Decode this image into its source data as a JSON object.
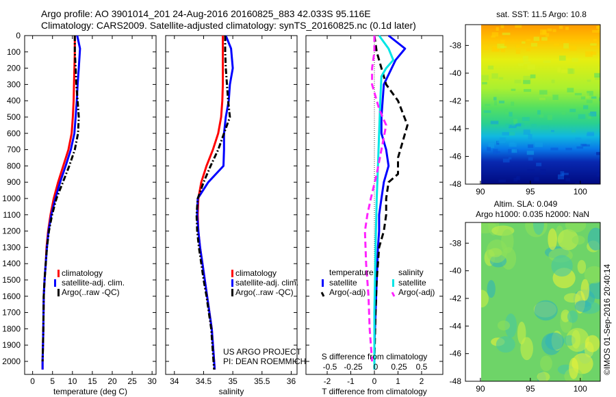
{
  "header": {
    "line1": "Argo profile: AO 3901014_201 24-Aug-2016 20160825_883 42.033S 95.116E",
    "line2": "Climatology: CARS2009. Satellite-adjusted climatology: synTS_20160825.nc (0.1d later)"
  },
  "credit": {
    "project": "US ARGO PROJECT",
    "pi": "PI: DEAN ROEMMICH",
    "stamp": "©IMOS 01-Sep-2016 20:40:14"
  },
  "colors": {
    "climatology": "#ff0000",
    "satellite": "#0000ff",
    "argo": "#000000",
    "sal_satellite": "#00e5e5",
    "sal_argo": "#ff22ff"
  },
  "chart_data": [
    {
      "id": "temperature",
      "type": "line",
      "xlabel": "temperature (deg C)",
      "ylabel": "",
      "xlim": [
        -2,
        31
      ],
      "ylim": [
        2080,
        0
      ],
      "xticks": [
        0,
        5,
        10,
        15,
        20,
        25,
        30
      ],
      "yticks": [
        0,
        100,
        200,
        300,
        400,
        500,
        600,
        700,
        800,
        900,
        1000,
        1100,
        1200,
        1300,
        1400,
        1500,
        1600,
        1700,
        1800,
        1900,
        2000
      ],
      "series": [
        {
          "name": "climatology",
          "style": "solid",
          "x": [
            10.6,
            10.6,
            10.5,
            10.4,
            10.3,
            10.1,
            9.8,
            9.0,
            7.7,
            6.4,
            5.3,
            4.5,
            3.9,
            3.5,
            3.3,
            3.0,
            2.8,
            2.7,
            2.6,
            2.5,
            2.5
          ],
          "y": [
            0,
            100,
            200,
            300,
            400,
            500,
            600,
            700,
            800,
            900,
            1000,
            1100,
            1200,
            1300,
            1400,
            1500,
            1600,
            1800,
            1900,
            2000,
            2050
          ]
        },
        {
          "name": "satellite-adj. clim.",
          "style": "solid",
          "x": [
            11.2,
            11.9,
            11.6,
            11.3,
            11.1,
            10.8,
            10.5,
            9.6,
            8.3,
            6.9,
            5.7,
            4.7,
            4.0,
            3.6,
            3.3,
            3.0,
            2.8,
            2.7,
            2.6,
            2.5,
            2.5
          ],
          "y": [
            0,
            80,
            200,
            300,
            400,
            500,
            600,
            700,
            800,
            900,
            1000,
            1100,
            1200,
            1300,
            1400,
            1500,
            1600,
            1800,
            1900,
            2000,
            2050
          ]
        },
        {
          "name": "Argo(..raw -QC)",
          "style": "dashdot",
          "x": [
            10.6,
            10.6,
            10.8,
            11.0,
            11.3,
            11.6,
            11.4,
            10.6,
            9.2,
            7.6,
            6.0,
            4.9,
            4.1,
            3.6,
            3.3,
            3.0,
            2.8,
            2.7,
            2.6,
            2.5
          ],
          "y": [
            0,
            100,
            200,
            300,
            400,
            500,
            600,
            700,
            800,
            900,
            1000,
            1100,
            1200,
            1300,
            1400,
            1500,
            1600,
            1800,
            1900,
            2000
          ]
        }
      ],
      "legend": [
        "climatology",
        "satellite-adj. clim.",
        "Argo(..raw -QC)"
      ]
    },
    {
      "id": "salinity",
      "type": "line",
      "xlabel": "salinity",
      "ylabel": "",
      "xlim": [
        33.85,
        36.1
      ],
      "ylim": [
        2080,
        0
      ],
      "xticks": [
        34,
        34.5,
        35,
        35.5,
        36
      ],
      "series": [
        {
          "name": "climatology",
          "style": "solid",
          "x": [
            34.83,
            34.83,
            34.83,
            34.83,
            34.82,
            34.8,
            34.75,
            34.66,
            34.55,
            34.46,
            34.41,
            34.4,
            34.41,
            34.44,
            34.48,
            34.52,
            34.56,
            34.6,
            34.64,
            34.67,
            34.69
          ],
          "y": [
            0,
            100,
            200,
            300,
            400,
            500,
            600,
            700,
            800,
            900,
            1000,
            1100,
            1200,
            1300,
            1400,
            1500,
            1600,
            1700,
            1800,
            1950,
            2050
          ]
        },
        {
          "name": "satellite-adj. clim.",
          "style": "solid",
          "x": [
            34.88,
            34.97,
            35.0,
            34.95,
            34.93,
            34.88,
            34.85,
            34.85,
            34.84,
            34.58,
            34.4,
            34.39,
            34.41,
            34.44,
            34.48,
            34.52,
            34.56,
            34.6,
            34.64,
            34.67,
            34.69
          ],
          "y": [
            0,
            80,
            200,
            300,
            400,
            500,
            600,
            700,
            800,
            900,
            1000,
            1100,
            1200,
            1300,
            1400,
            1500,
            1600,
            1700,
            1800,
            1950,
            2050
          ]
        },
        {
          "name": "Argo(..raw -QC)",
          "style": "dashdot",
          "x": [
            34.87,
            34.87,
            34.88,
            34.9,
            34.92,
            34.95,
            34.85,
            34.75,
            34.62,
            34.5,
            34.4,
            34.38,
            34.39,
            34.42,
            34.46,
            34.5,
            34.55,
            34.59,
            34.63,
            34.66,
            34.68
          ],
          "y": [
            0,
            100,
            200,
            300,
            400,
            500,
            600,
            700,
            800,
            900,
            1000,
            1100,
            1200,
            1300,
            1400,
            1500,
            1600,
            1700,
            1800,
            1950,
            2050
          ]
        }
      ],
      "legend": [
        "climatology",
        "satellite-adj. clim.",
        "Argo(..raw -QC)"
      ]
    },
    {
      "id": "difference",
      "type": "line",
      "xlabel": "T difference from climatology",
      "ylabel": "",
      "xlim": [
        -2.9,
        2.9
      ],
      "ylim": [
        2080,
        0
      ],
      "xticks": [
        -2,
        -1,
        0,
        1,
        2
      ],
      "top_xlabel": "S difference from climatology",
      "top_xticks": [
        "-0.5",
        "-0.25",
        "0",
        "0.25",
        "0.5"
      ],
      "series": [
        {
          "name": "temperature satellite",
          "style": "solid",
          "x": [
            0.6,
            1.3,
            0.9,
            0.4,
            0.3,
            0.3,
            0.5,
            0.6,
            0.4,
            0.3,
            0.2,
            0.2,
            0.15,
            0.1,
            0.05,
            0,
            0
          ],
          "y": [
            0,
            80,
            150,
            300,
            500,
            600,
            700,
            800,
            900,
            1000,
            1100,
            1200,
            1300,
            1500,
            1700,
            1900,
            2050
          ]
        },
        {
          "name": "temperature Argo(-adj)",
          "style": "dashed",
          "x": [
            0,
            0.1,
            0.5,
            1.0,
            1.4,
            1.2,
            1.0,
            1.0,
            0.6,
            0.5,
            0.5,
            0.4,
            0.2,
            0.1,
            0.05,
            0
          ],
          "y": [
            0,
            100,
            300,
            400,
            550,
            650,
            750,
            850,
            900,
            1000,
            1100,
            1200,
            1300,
            1500,
            1700,
            2000
          ]
        },
        {
          "name": "salinity satellite",
          "style": "solid",
          "x": [
            0.2,
            0.6,
            0.8,
            0.5,
            0.3,
            0.25,
            0.2,
            0.15,
            0.1,
            0.05,
            0,
            0
          ],
          "y": [
            0,
            80,
            150,
            200,
            250,
            400,
            600,
            800,
            1000,
            1300,
            1700,
            2050
          ]
        },
        {
          "name": "salinity Argo(-adj)",
          "style": "dashed",
          "x": [
            0,
            0,
            -0.1,
            -0.1,
            0.2,
            0.5,
            0.3,
            0.1,
            -0.15,
            -0.3,
            -0.4,
            -0.35,
            -0.25,
            -0.2,
            -0.1
          ],
          "y": [
            0,
            100,
            200,
            300,
            450,
            550,
            700,
            850,
            1000,
            1100,
            1200,
            1400,
            1600,
            1800,
            2000
          ]
        }
      ],
      "legend_groups": {
        "temperature": {
          "title": "temperature",
          "items": [
            "satellite",
            "Argo(-adj)"
          ]
        },
        "salinity": {
          "title": "salinity",
          "items": [
            "satellite",
            "Argo(-adj)"
          ]
        }
      }
    },
    {
      "id": "sst_map",
      "type": "heatmap",
      "title": "sat. SST: 11.5 Argo: 10.8",
      "xlim": [
        88.5,
        102
      ],
      "ylim": [
        -48,
        -36.5
      ],
      "xticks": [
        90,
        95,
        100
      ],
      "yticks": [
        -38,
        -40,
        -42,
        -44,
        -46,
        -48
      ]
    },
    {
      "id": "sla_map",
      "type": "heatmap",
      "title_line1": "Altim. SLA: 0.049",
      "title_line2": "Argo h1000: 0.035 h2000: NaN",
      "xlim": [
        88.5,
        102
      ],
      "ylim": [
        -48,
        -36.5
      ],
      "xticks": [
        90,
        95,
        100
      ],
      "yticks": [
        -38,
        -40,
        -42,
        -44,
        -46,
        -48
      ]
    }
  ]
}
